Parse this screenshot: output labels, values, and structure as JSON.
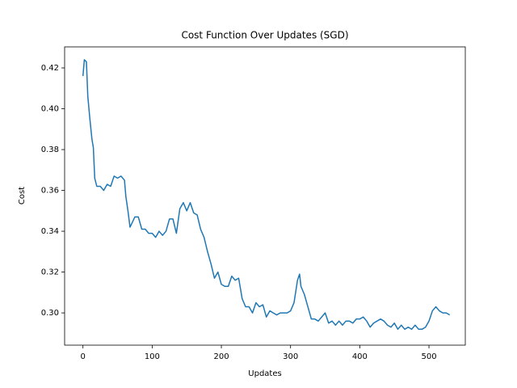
{
  "chart_data": {
    "type": "line",
    "title": "Cost Function Over Updates (SGD)",
    "x_label": "Updates",
    "y_label": "Cost",
    "x": [
      0,
      2,
      5,
      7,
      10,
      13,
      15,
      17,
      20,
      25,
      30,
      35,
      40,
      45,
      50,
      55,
      60,
      62,
      65,
      68,
      75,
      80,
      85,
      90,
      95,
      100,
      105,
      110,
      115,
      120,
      125,
      130,
      135,
      140,
      145,
      150,
      155,
      160,
      165,
      170,
      175,
      180,
      185,
      190,
      195,
      200,
      205,
      210,
      215,
      220,
      225,
      230,
      235,
      240,
      245,
      250,
      255,
      260,
      265,
      270,
      275,
      280,
      285,
      290,
      295,
      300,
      305,
      310,
      313,
      315,
      320,
      325,
      330,
      335,
      340,
      345,
      350,
      355,
      360,
      365,
      370,
      375,
      380,
      385,
      390,
      395,
      400,
      405,
      410,
      415,
      420,
      425,
      430,
      435,
      440,
      445,
      450,
      455,
      460,
      465,
      470,
      475,
      480,
      485,
      490,
      495,
      500,
      505,
      510,
      515,
      520,
      525,
      530
    ],
    "series": [
      {
        "name": "Cost",
        "color": "#1f77b4",
        "values": [
          0.416,
          0.424,
          0.423,
          0.406,
          0.395,
          0.385,
          0.381,
          0.366,
          0.362,
          0.362,
          0.36,
          0.363,
          0.362,
          0.367,
          0.366,
          0.367,
          0.365,
          0.357,
          0.35,
          0.342,
          0.347,
          0.347,
          0.341,
          0.341,
          0.339,
          0.339,
          0.337,
          0.34,
          0.338,
          0.34,
          0.346,
          0.346,
          0.339,
          0.351,
          0.354,
          0.35,
          0.354,
          0.349,
          0.348,
          0.341,
          0.337,
          0.33,
          0.324,
          0.317,
          0.32,
          0.314,
          0.313,
          0.313,
          0.318,
          0.316,
          0.317,
          0.307,
          0.303,
          0.303,
          0.3,
          0.305,
          0.303,
          0.304,
          0.298,
          0.301,
          0.3,
          0.299,
          0.3,
          0.3,
          0.3,
          0.301,
          0.305,
          0.316,
          0.319,
          0.313,
          0.309,
          0.303,
          0.297,
          0.297,
          0.296,
          0.298,
          0.3,
          0.295,
          0.296,
          0.294,
          0.296,
          0.294,
          0.296,
          0.296,
          0.295,
          0.297,
          0.297,
          0.298,
          0.296,
          0.293,
          0.295,
          0.296,
          0.297,
          0.296,
          0.294,
          0.293,
          0.295,
          0.292,
          0.294,
          0.292,
          0.293,
          0.292,
          0.294,
          0.292,
          0.292,
          0.293,
          0.296,
          0.301,
          0.303,
          0.301,
          0.3,
          0.3,
          0.299
        ]
      }
    ],
    "xlim": [
      -26.5,
      552.5
    ],
    "ylim": [
      0.2842,
      0.4303
    ],
    "xticks": [
      0,
      100,
      200,
      300,
      400,
      500
    ],
    "yticks": [
      {
        "value": 0.3,
        "label": "0.30"
      },
      0.32,
      0.34,
      0.36,
      0.38,
      {
        "value": 0.4,
        "label": "0.40"
      },
      0.42
    ]
  }
}
